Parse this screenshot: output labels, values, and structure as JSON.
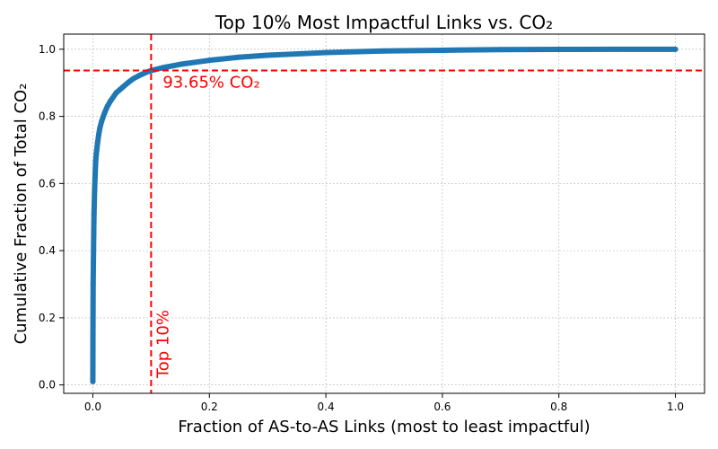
{
  "chart_data": {
    "type": "line",
    "title": "Top 10% Most Impactful Links vs. CO₂",
    "xlabel": "Fraction of AS-to-AS Links (most to least impactful)",
    "ylabel": "Cumulative Fraction of Total CO₂",
    "xlim": [
      -0.05,
      1.05
    ],
    "ylim": [
      -0.025,
      1.045
    ],
    "xticks": [
      0.0,
      0.2,
      0.4,
      0.6,
      0.8,
      1.0
    ],
    "xtick_labels": [
      "0.0",
      "0.2",
      "0.4",
      "0.6",
      "0.8",
      "1.0"
    ],
    "yticks": [
      0.0,
      0.2,
      0.4,
      0.6,
      0.8,
      1.0
    ],
    "ytick_labels": [
      "0.0",
      "0.2",
      "0.4",
      "0.6",
      "0.8",
      "1.0"
    ],
    "grid": true,
    "series": [
      {
        "color": "#1f77b4",
        "x": [
          0.0,
          0.0002,
          0.0005,
          0.001,
          0.0015,
          0.002,
          0.003,
          0.004,
          0.005,
          0.006,
          0.008,
          0.01,
          0.012,
          0.015,
          0.02,
          0.025,
          0.03,
          0.04,
          0.05,
          0.06,
          0.07,
          0.08,
          0.09,
          0.1,
          0.12,
          0.15,
          0.2,
          0.25,
          0.3,
          0.4,
          0.5,
          0.6,
          0.7,
          0.8,
          0.9,
          1.0
        ],
        "y": [
          0.01,
          0.15,
          0.3,
          0.37,
          0.45,
          0.51,
          0.58,
          0.63,
          0.67,
          0.69,
          0.72,
          0.745,
          0.765,
          0.785,
          0.81,
          0.83,
          0.845,
          0.87,
          0.885,
          0.9,
          0.913,
          0.922,
          0.93,
          0.9365,
          0.945,
          0.955,
          0.967,
          0.976,
          0.982,
          0.99,
          0.995,
          0.997,
          0.999,
          0.9995,
          1.0,
          1.0
        ]
      }
    ],
    "reference_lines": {
      "vertical_x": 0.1,
      "horizontal_y": 0.9365,
      "color": "#ff0000"
    },
    "annotations": {
      "horizontal_label": "93.65% CO₂",
      "vertical_label": "Top 10%"
    }
  }
}
